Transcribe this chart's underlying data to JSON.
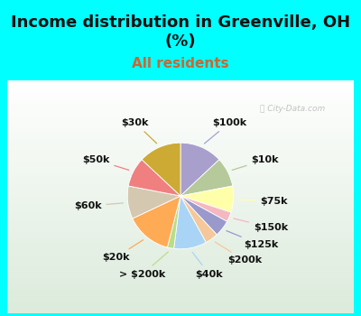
{
  "title_line1": "Income distribution in Greenville, OH",
  "title_line2": "(%)",
  "subtitle": "All residents",
  "watermark": "City-Data.com",
  "slices": [
    {
      "label": "$100k",
      "value": 13,
      "color": "#a99fcc"
    },
    {
      "label": "$10k",
      "value": 9,
      "color": "#b5c99a"
    },
    {
      "label": "$75k",
      "value": 8,
      "color": "#ffffaa"
    },
    {
      "label": "$150k",
      "value": 3,
      "color": "#f4b8c1"
    },
    {
      "label": "$125k",
      "value": 5,
      "color": "#9999cc"
    },
    {
      "label": "$200k",
      "value": 4,
      "color": "#f4c89a"
    },
    {
      "label": "$40k",
      "value": 10,
      "color": "#aad4f5"
    },
    {
      "label": "> $200k",
      "value": 2,
      "color": "#bbdd88"
    },
    {
      "label": "$20k",
      "value": 14,
      "color": "#ffaa55"
    },
    {
      "label": "$60k",
      "value": 10,
      "color": "#d4c8b0"
    },
    {
      "label": "$50k",
      "value": 9,
      "color": "#f08080"
    },
    {
      "label": "$30k",
      "value": 13,
      "color": "#ccaa33"
    }
  ],
  "bg_color": "#00ffff",
  "title_color": "#111111",
  "subtitle_color": "#cc6633",
  "label_color": "#111111",
  "title_fontsize": 13,
  "subtitle_fontsize": 11,
  "label_fontsize": 8
}
